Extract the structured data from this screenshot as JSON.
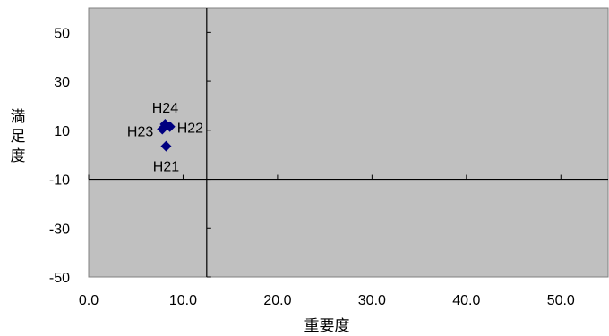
{
  "chart_data": {
    "type": "scatter",
    "title": "",
    "xlabel": "重要度",
    "ylabel": "満足度",
    "xlim": [
      0,
      55
    ],
    "ylim": [
      -50,
      60
    ],
    "x_ticks": [
      "0.0",
      "10.0",
      "20.0",
      "30.0",
      "40.0",
      "50.0"
    ],
    "y_ticks": [
      "50",
      "30",
      "10",
      "-10",
      "-30",
      "-50"
    ],
    "x_tick_values": [
      0,
      10,
      20,
      30,
      40,
      50
    ],
    "y_tick_values": [
      50,
      30,
      10,
      -10,
      -30,
      -50
    ],
    "crosshair": {
      "x": 12.5,
      "y": -10
    },
    "grid": false,
    "plot_background": "#c0c0c0",
    "marker_color": "#000080",
    "points": [
      {
        "label": "H21",
        "x": 8.2,
        "y": 3.5
      },
      {
        "label": "H22",
        "x": 8.6,
        "y": 11.5
      },
      {
        "label": "H23",
        "x": 7.8,
        "y": 10.5
      },
      {
        "label": "H24",
        "x": 8.1,
        "y": 12.5
      }
    ]
  }
}
